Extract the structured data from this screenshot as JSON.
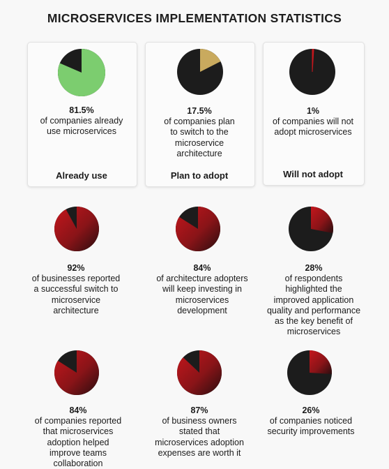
{
  "title": "MICROSERVICES IMPLEMENTATION STATISTICS",
  "colors": {
    "pie_dark": "#1c1c1c",
    "green": "#7ccd6f",
    "gold": "#c9aa5e",
    "red": "#c4161c",
    "red_dark": "#2a0d0f"
  },
  "chart_data": [
    {
      "type": "pie",
      "value": 81.5,
      "label": "81.5%",
      "description": [
        "of companies already",
        "use microservices"
      ],
      "category": "Already use",
      "fill": "green"
    },
    {
      "type": "pie",
      "value": 17.5,
      "label": "17.5%",
      "description": [
        "of companies plan",
        "to switch to the",
        "microservice",
        "architecture"
      ],
      "category": "Plan to adopt",
      "fill": "gold"
    },
    {
      "type": "pie",
      "value": 1,
      "label": "1%",
      "description": [
        "of companies will not",
        "adopt microservices"
      ],
      "category": "Will not adopt",
      "fill": "red"
    },
    {
      "type": "pie",
      "value": 92,
      "label": "92%",
      "description": [
        "of businesses reported",
        "a successful switch to",
        "microservice",
        "architecture"
      ],
      "fill": "red-gradient"
    },
    {
      "type": "pie",
      "value": 84,
      "label": "84%",
      "description": [
        "of architecture adopters",
        "will keep investing in",
        "microservices",
        "development"
      ],
      "fill": "red-gradient"
    },
    {
      "type": "pie",
      "value": 28,
      "label": "28%",
      "description": [
        "of respondents",
        "highlighted the",
        "improved application",
        "quality and performance",
        "as the key benefit of",
        "microservices"
      ],
      "fill": "red-gradient"
    },
    {
      "type": "pie",
      "value": 84,
      "label": "84%",
      "description": [
        "of companies reported",
        "that microservices",
        "adoption helped",
        "improve teams",
        "collaboration"
      ],
      "fill": "red-gradient"
    },
    {
      "type": "pie",
      "value": 87,
      "label": "87%",
      "description": [
        "of business owners",
        "stated that",
        "microservices adoption",
        "expenses are worth it"
      ],
      "fill": "red-gradient"
    },
    {
      "type": "pie",
      "value": 26,
      "label": "26%",
      "description": [
        "of companies noticed",
        "security improvements"
      ],
      "fill": "red-gradient"
    }
  ]
}
